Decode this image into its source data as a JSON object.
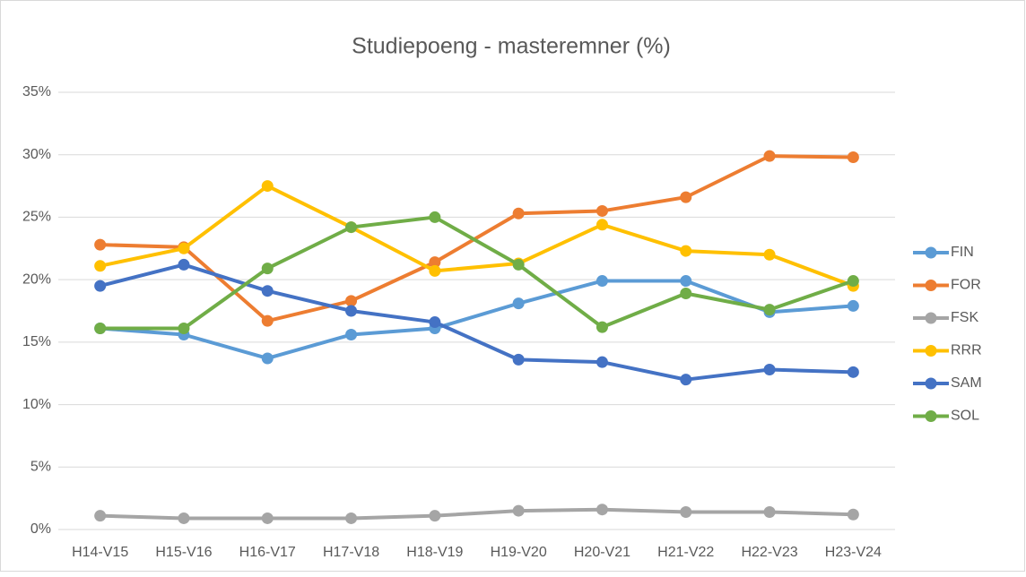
{
  "chart_data": {
    "type": "line",
    "title": "Studiepoeng - masteremner (%)",
    "categories": [
      "H14-V15",
      "H15-V16",
      "H16-V17",
      "H17-V18",
      "H18-V19",
      "H19-V20",
      "H20-V21",
      "H21-V22",
      "H22-V23",
      "H23-V24"
    ],
    "series": [
      {
        "name": "FIN",
        "color": "#5b9bd5",
        "values": [
          16.1,
          15.6,
          13.7,
          15.6,
          16.1,
          18.1,
          19.9,
          19.9,
          17.4,
          17.9
        ]
      },
      {
        "name": "FOR",
        "color": "#ed7d31",
        "values": [
          22.8,
          22.6,
          16.7,
          18.3,
          21.4,
          25.3,
          25.5,
          26.6,
          29.9,
          29.8
        ]
      },
      {
        "name": "FSK",
        "color": "#a5a5a5",
        "values": [
          1.1,
          0.9,
          0.9,
          0.9,
          1.1,
          1.5,
          1.6,
          1.4,
          1.4,
          1.2
        ]
      },
      {
        "name": "RRR",
        "color": "#ffc000",
        "values": [
          21.1,
          22.5,
          27.5,
          24.2,
          20.7,
          21.3,
          24.4,
          22.3,
          22.0,
          19.5
        ]
      },
      {
        "name": "SAM",
        "color": "#4472c4",
        "values": [
          19.5,
          21.2,
          19.1,
          17.5,
          16.6,
          13.6,
          13.4,
          12.0,
          12.8,
          12.6
        ]
      },
      {
        "name": "SOL",
        "color": "#70ad47",
        "values": [
          16.1,
          16.1,
          20.9,
          24.2,
          25.0,
          21.2,
          16.2,
          18.9,
          17.6,
          19.9
        ]
      }
    ],
    "ylim": [
      0,
      35
    ],
    "yticks": [
      {
        "value": 0,
        "label": "0%"
      },
      {
        "value": 5,
        "label": "5%"
      },
      {
        "value": 10,
        "label": "10%"
      },
      {
        "value": 15,
        "label": "15%"
      },
      {
        "value": 20,
        "label": "20%"
      },
      {
        "value": 25,
        "label": "25%"
      },
      {
        "value": 30,
        "label": "30%"
      },
      {
        "value": 35,
        "label": "35%"
      }
    ],
    "grid": true,
    "legend": "right"
  }
}
